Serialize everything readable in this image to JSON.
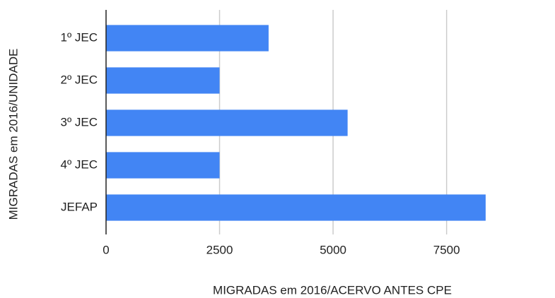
{
  "chart_data": {
    "type": "bar",
    "orientation": "horizontal",
    "categories": [
      "1º JEC",
      "2º JEC",
      "3º JEC",
      "4º JEC",
      "JEFAP"
    ],
    "values": [
      3580,
      2500,
      5320,
      2500,
      8360
    ],
    "color": "#4285f4",
    "xlabel": "MIGRADAS em 2016/ACERVO ANTES CPE",
    "ylabel": "MIGRADAS em 2016/UNIDADE",
    "xlim": [
      0,
      9000
    ],
    "xticks": [
      0,
      2500,
      5000,
      7500
    ],
    "grid": true
  }
}
